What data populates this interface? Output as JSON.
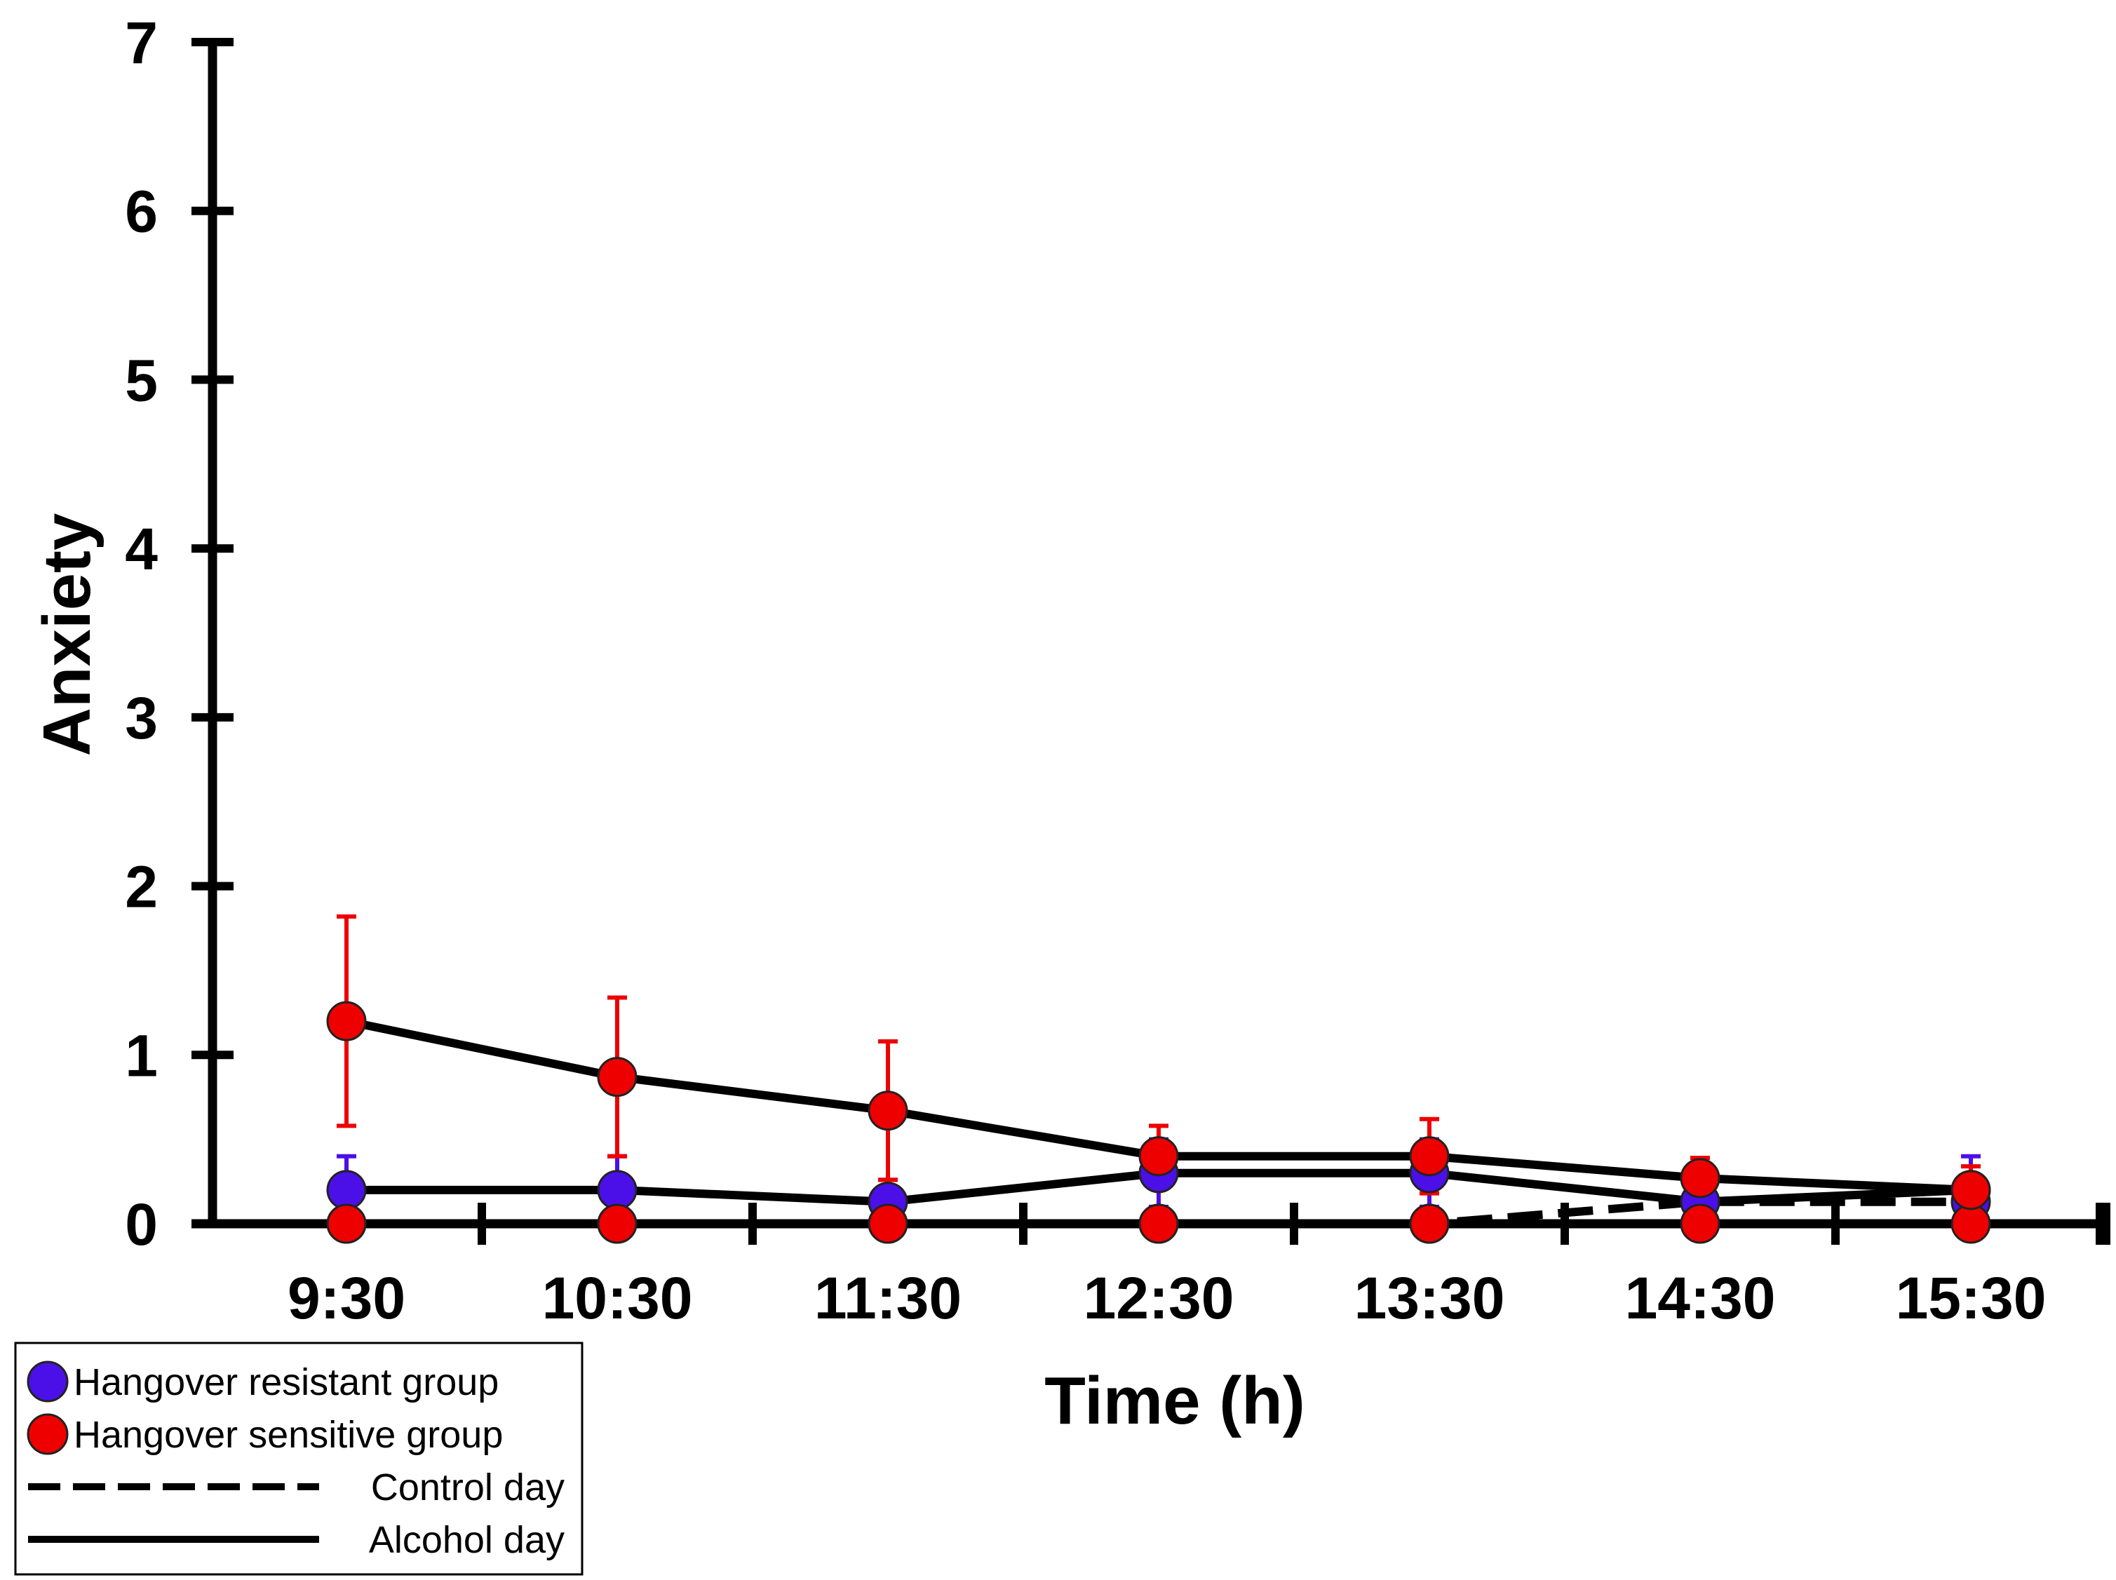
{
  "chart_data": {
    "type": "line",
    "xlabel": "Time (h)",
    "ylabel": "Anxiety",
    "ylim": [
      0,
      7
    ],
    "yticks": [
      "0",
      "1",
      "2",
      "3",
      "4",
      "5",
      "6",
      "7"
    ],
    "categories": [
      "9:30",
      "10:30",
      "11:30",
      "12:30",
      "13:30",
      "14:30",
      "15:30"
    ],
    "grid": false,
    "legend_position": "bottom-left",
    "series": [
      {
        "name": "Hangover resistant group",
        "group": "resistant",
        "day": "Control day",
        "color": "#4b10e8",
        "line_style": "dashed",
        "values": [
          0,
          0,
          0,
          0,
          0,
          0.13,
          0.13
        ],
        "errors": [
          0,
          0,
          0,
          0,
          0,
          0,
          0
        ]
      },
      {
        "name": "Hangover resistant group",
        "group": "resistant",
        "day": "Alcohol day",
        "color": "#4b10e8",
        "line_style": "solid",
        "values": [
          0.2,
          0.2,
          0.13,
          0.3,
          0.3,
          0.13,
          0.2
        ],
        "errors": [
          0.2,
          0.2,
          0.13,
          0.2,
          0.2,
          0.2,
          0.2
        ]
      },
      {
        "name": "Hangover sensitive group",
        "group": "sensitive",
        "day": "Control day",
        "color": "#ee0000",
        "line_style": "dashed",
        "values": [
          0,
          0,
          0,
          0,
          0,
          0,
          0
        ],
        "errors": [
          0,
          0,
          0,
          0,
          0,
          0,
          0
        ]
      },
      {
        "name": "Hangover sensitive group",
        "group": "sensitive",
        "day": "Alcohol day",
        "color": "#ee0000",
        "line_style": "solid",
        "values": [
          1.2,
          0.87,
          0.67,
          0.4,
          0.4,
          0.27,
          0.2
        ],
        "errors": [
          0.62,
          0.47,
          0.41,
          0.18,
          0.22,
          0.12,
          0.14
        ]
      }
    ],
    "legend": [
      {
        "label": "Hangover resistant group",
        "kind": "marker",
        "color": "#4b10e8"
      },
      {
        "label": "Hangover sensitive group",
        "kind": "marker",
        "color": "#ee0000"
      },
      {
        "label": "Control day",
        "kind": "dashed-line",
        "color": "#000000"
      },
      {
        "label": "Alcohol day",
        "kind": "solid-line",
        "color": "#000000"
      }
    ]
  }
}
